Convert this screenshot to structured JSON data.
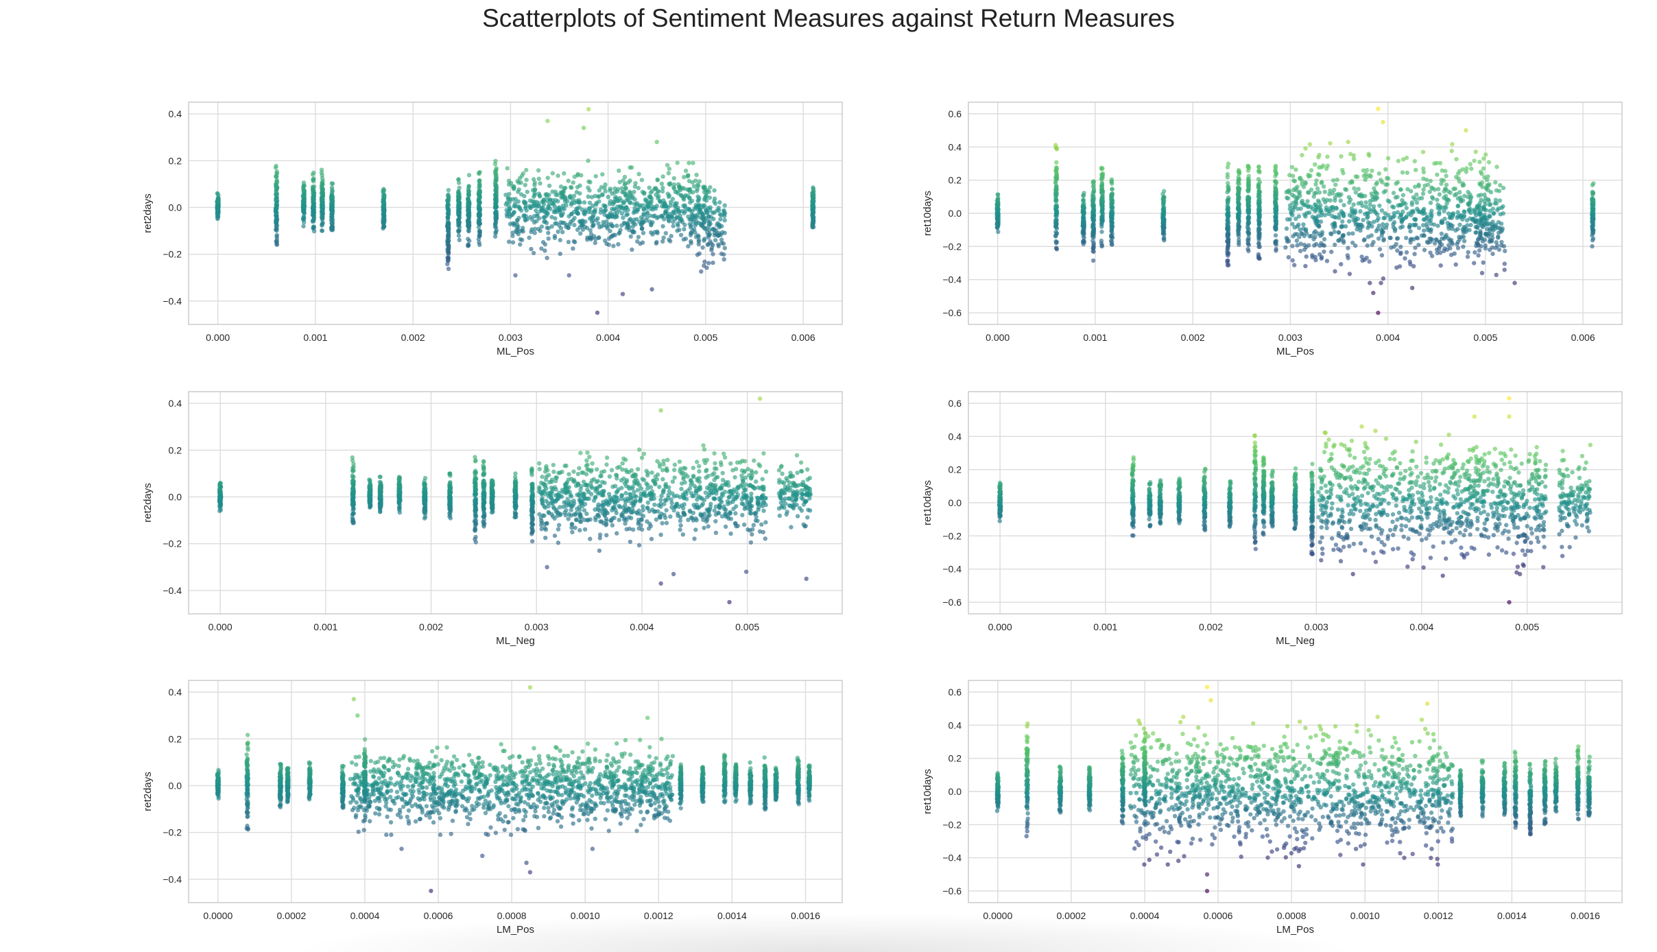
{
  "figure": {
    "suptitle": "Scatterplots of Sentiment Measures against Return Measures",
    "colormap": [
      "#440154",
      "#3b528b",
      "#21918c",
      "#5ec962",
      "#fde725"
    ],
    "grid": true,
    "style": "seaborn-whitegrid"
  },
  "chart_data": [
    {
      "type": "scatter",
      "title": "",
      "xlabel": "ML_Pos",
      "ylabel": "ret2days",
      "xlim": [
        -0.0003,
        0.0064
      ],
      "ylim": [
        -0.5,
        0.45
      ],
      "xticks": [
        0,
        0.001,
        0.002,
        0.003,
        0.004,
        0.005,
        0.006
      ],
      "xtick_labels": [
        "0.000",
        "0.001",
        "0.002",
        "0.003",
        "0.004",
        "0.005",
        "0.006"
      ],
      "yticks": [
        -0.4,
        -0.2,
        0,
        0.2,
        0.4
      ],
      "ytick_labels": [
        "−0.4",
        "−0.2",
        "0.0",
        "0.2",
        "0.4"
      ],
      "clusters": [
        {
          "x": 0.0,
          "lo": -0.06,
          "hi": 0.07
        },
        {
          "x": 0.0006,
          "lo": -0.2,
          "hi": 0.21
        },
        {
          "x": 0.00088,
          "lo": -0.09,
          "hi": 0.12
        },
        {
          "x": 0.00098,
          "lo": -0.12,
          "hi": 0.15
        },
        {
          "x": 0.00107,
          "lo": -0.1,
          "hi": 0.17
        },
        {
          "x": 0.00117,
          "lo": -0.1,
          "hi": 0.11
        },
        {
          "x": 0.0017,
          "lo": -0.09,
          "hi": 0.08
        },
        {
          "x": 0.00236,
          "lo": -0.29,
          "hi": 0.1
        },
        {
          "x": 0.00247,
          "lo": -0.15,
          "hi": 0.13
        },
        {
          "x": 0.00257,
          "lo": -0.17,
          "hi": 0.14
        },
        {
          "x": 0.00268,
          "lo": -0.16,
          "hi": 0.16
        },
        {
          "x": 0.00285,
          "lo": -0.14,
          "hi": 0.2
        }
      ],
      "bands": [
        {
          "x0": 0.00295,
          "x1": 0.00505,
          "lo": -0.22,
          "hi": 0.2,
          "outliers": [
            [
              0.0038,
              0.42
            ],
            [
              0.00338,
              0.37
            ],
            [
              0.00375,
              0.34
            ],
            [
              0.0045,
              0.28
            ],
            [
              0.00389,
              -0.45
            ],
            [
              0.00445,
              -0.35
            ],
            [
              0.00415,
              -0.37
            ],
            [
              0.00305,
              -0.29
            ],
            [
              0.0036,
              -0.29
            ]
          ]
        },
        {
          "x0": 0.0049,
          "x1": 0.0052,
          "lo": -0.3,
          "hi": 0.16,
          "outliers": []
        }
      ],
      "extra_clusters": [
        {
          "x": 0.0061,
          "lo": -0.1,
          "hi": 0.11
        }
      ]
    },
    {
      "type": "scatter",
      "title": "",
      "xlabel": "ML_Pos",
      "ylabel": "ret10days",
      "xlim": [
        -0.0003,
        0.0064
      ],
      "ylim": [
        -0.67,
        0.67
      ],
      "xticks": [
        0,
        0.001,
        0.002,
        0.003,
        0.004,
        0.005,
        0.006
      ],
      "xtick_labels": [
        "0.000",
        "0.001",
        "0.002",
        "0.003",
        "0.004",
        "0.005",
        "0.006"
      ],
      "yticks": [
        -0.6,
        -0.4,
        -0.2,
        0,
        0.2,
        0.4,
        0.6
      ],
      "ytick_labels": [
        "−0.6",
        "−0.4",
        "−0.2",
        "0.0",
        "0.2",
        "0.4",
        "0.6"
      ],
      "clusters": [
        {
          "x": 0.0,
          "lo": -0.12,
          "hi": 0.12
        },
        {
          "x": 0.0006,
          "lo": -0.27,
          "hi": 0.42
        },
        {
          "x": 0.00088,
          "lo": -0.2,
          "hi": 0.15
        },
        {
          "x": 0.00098,
          "lo": -0.3,
          "hi": 0.25
        },
        {
          "x": 0.00107,
          "lo": -0.2,
          "hi": 0.28
        },
        {
          "x": 0.00117,
          "lo": -0.2,
          "hi": 0.22
        },
        {
          "x": 0.0017,
          "lo": -0.2,
          "hi": 0.14
        },
        {
          "x": 0.00236,
          "lo": -0.33,
          "hi": 0.3
        },
        {
          "x": 0.00247,
          "lo": -0.24,
          "hi": 0.3
        },
        {
          "x": 0.00257,
          "lo": -0.23,
          "hi": 0.3
        },
        {
          "x": 0.00268,
          "lo": -0.28,
          "hi": 0.3
        },
        {
          "x": 0.00285,
          "lo": -0.25,
          "hi": 0.32
        }
      ],
      "bands": [
        {
          "x0": 0.00295,
          "x1": 0.00505,
          "lo": -0.42,
          "hi": 0.43,
          "outliers": [
            [
              0.0039,
              0.63
            ],
            [
              0.00395,
              0.55
            ],
            [
              0.0048,
              0.5
            ],
            [
              0.00385,
              -0.48
            ],
            [
              0.0039,
              -0.6
            ],
            [
              0.00425,
              -0.45
            ],
            [
              0.0053,
              -0.42
            ]
          ]
        },
        {
          "x0": 0.0049,
          "x1": 0.0052,
          "lo": -0.42,
          "hi": 0.28,
          "outliers": []
        }
      ],
      "extra_clusters": [
        {
          "x": 0.0061,
          "lo": -0.2,
          "hi": 0.18
        }
      ]
    },
    {
      "type": "scatter",
      "title": "",
      "xlabel": "ML_Neg",
      "ylabel": "ret2days",
      "xlim": [
        -0.0003,
        0.0059
      ],
      "ylim": [
        -0.5,
        0.45
      ],
      "xticks": [
        0,
        0.001,
        0.002,
        0.003,
        0.004,
        0.005
      ],
      "xtick_labels": [
        "0.000",
        "0.001",
        "0.002",
        "0.003",
        "0.004",
        "0.005"
      ],
      "yticks": [
        -0.4,
        -0.2,
        0,
        0.2,
        0.4
      ],
      "ytick_labels": [
        "−0.4",
        "−0.2",
        "0.0",
        "0.2",
        "0.4"
      ],
      "clusters": [
        {
          "x": 0.0,
          "lo": -0.06,
          "hi": 0.06
        },
        {
          "x": 0.00126,
          "lo": -0.14,
          "hi": 0.18
        },
        {
          "x": 0.00142,
          "lo": -0.07,
          "hi": 0.08
        },
        {
          "x": 0.00152,
          "lo": -0.07,
          "hi": 0.09
        },
        {
          "x": 0.0017,
          "lo": -0.07,
          "hi": 0.09
        },
        {
          "x": 0.00194,
          "lo": -0.1,
          "hi": 0.09
        },
        {
          "x": 0.00218,
          "lo": -0.1,
          "hi": 0.1
        },
        {
          "x": 0.00242,
          "lo": -0.2,
          "hi": 0.17
        },
        {
          "x": 0.0025,
          "lo": -0.14,
          "hi": 0.16
        },
        {
          "x": 0.00258,
          "lo": -0.07,
          "hi": 0.08
        },
        {
          "x": 0.0028,
          "lo": -0.1,
          "hi": 0.1
        },
        {
          "x": 0.00296,
          "lo": -0.2,
          "hi": 0.14
        }
      ],
      "bands": [
        {
          "x0": 0.00302,
          "x1": 0.00518,
          "lo": -0.23,
          "hi": 0.22,
          "outliers": [
            [
              0.00512,
              0.42
            ],
            [
              0.00418,
              0.37
            ],
            [
              0.00483,
              -0.45
            ],
            [
              0.00418,
              -0.37
            ],
            [
              0.0043,
              -0.33
            ],
            [
              0.00499,
              -0.32
            ],
            [
              0.0031,
              -0.3
            ]
          ]
        },
        {
          "x0": 0.0053,
          "x1": 0.0056,
          "lo": -0.14,
          "hi": 0.2,
          "outliers": [
            [
              0.00556,
              -0.35
            ]
          ]
        }
      ],
      "extra_clusters": []
    },
    {
      "type": "scatter",
      "title": "",
      "xlabel": "ML_Neg",
      "ylabel": "ret10days",
      "xlim": [
        -0.0003,
        0.0059
      ],
      "ylim": [
        -0.67,
        0.67
      ],
      "xticks": [
        0,
        0.001,
        0.002,
        0.003,
        0.004,
        0.005
      ],
      "xtick_labels": [
        "0.000",
        "0.001",
        "0.002",
        "0.003",
        "0.004",
        "0.005"
      ],
      "yticks": [
        -0.6,
        -0.4,
        -0.2,
        0,
        0.2,
        0.4,
        0.6
      ],
      "ytick_labels": [
        "−0.6",
        "−0.4",
        "−0.2",
        "0.0",
        "0.2",
        "0.4",
        "0.6"
      ],
      "clusters": [
        {
          "x": 0.0,
          "lo": -0.12,
          "hi": 0.12
        },
        {
          "x": 0.00126,
          "lo": -0.2,
          "hi": 0.28
        },
        {
          "x": 0.00142,
          "lo": -0.15,
          "hi": 0.13
        },
        {
          "x": 0.00152,
          "lo": -0.15,
          "hi": 0.15
        },
        {
          "x": 0.0017,
          "lo": -0.14,
          "hi": 0.15
        },
        {
          "x": 0.00194,
          "lo": -0.17,
          "hi": 0.21
        },
        {
          "x": 0.00218,
          "lo": -0.15,
          "hi": 0.13
        },
        {
          "x": 0.00242,
          "lo": -0.3,
          "hi": 0.42
        },
        {
          "x": 0.0025,
          "lo": -0.2,
          "hi": 0.28
        },
        {
          "x": 0.00258,
          "lo": -0.15,
          "hi": 0.2
        },
        {
          "x": 0.0028,
          "lo": -0.2,
          "hi": 0.22
        },
        {
          "x": 0.00296,
          "lo": -0.33,
          "hi": 0.28
        }
      ],
      "bands": [
        {
          "x0": 0.00302,
          "x1": 0.00518,
          "lo": -0.43,
          "hi": 0.46,
          "outliers": [
            [
              0.00483,
              0.63
            ],
            [
              0.00483,
              0.52
            ],
            [
              0.0045,
              0.52
            ],
            [
              0.00483,
              -0.6
            ],
            [
              0.0042,
              -0.44
            ],
            [
              0.0049,
              -0.42
            ]
          ]
        },
        {
          "x0": 0.0053,
          "x1": 0.0056,
          "lo": -0.35,
          "hi": 0.38,
          "outliers": []
        }
      ],
      "extra_clusters": []
    },
    {
      "type": "scatter",
      "title": "",
      "xlabel": "LM_Pos",
      "ylabel": "ret2days",
      "xlim": [
        -8e-05,
        0.0017
      ],
      "ylim": [
        -0.5,
        0.45
      ],
      "xticks": [
        0,
        0.0002,
        0.0004,
        0.0006,
        0.0008,
        0.001,
        0.0012,
        0.0014,
        0.0016
      ],
      "xtick_labels": [
        "0.0000",
        "0.0002",
        "0.0004",
        "0.0006",
        "0.0008",
        "0.0010",
        "0.0012",
        "0.0014",
        "0.0016"
      ],
      "yticks": [
        -0.4,
        -0.2,
        0,
        0.2,
        0.4
      ],
      "ytick_labels": [
        "−0.4",
        "−0.2",
        "0.0",
        "0.2",
        "0.4"
      ],
      "clusters": [
        {
          "x": 0.0,
          "lo": -0.06,
          "hi": 0.07
        },
        {
          "x": 8e-05,
          "lo": -0.2,
          "hi": 0.22
        },
        {
          "x": 0.00017,
          "lo": -0.1,
          "hi": 0.1
        },
        {
          "x": 0.00019,
          "lo": -0.08,
          "hi": 0.09
        },
        {
          "x": 0.00025,
          "lo": -0.06,
          "hi": 0.1
        },
        {
          "x": 0.00034,
          "lo": -0.1,
          "hi": 0.1
        },
        {
          "x": 0.0004,
          "lo": -0.15,
          "hi": 0.2
        },
        {
          "x": 0.00126,
          "lo": -0.1,
          "hi": 0.1
        },
        {
          "x": 0.00132,
          "lo": -0.07,
          "hi": 0.08
        },
        {
          "x": 0.00138,
          "lo": -0.1,
          "hi": 0.15
        },
        {
          "x": 0.00141,
          "lo": -0.07,
          "hi": 0.1
        },
        {
          "x": 0.00145,
          "lo": -0.08,
          "hi": 0.1
        },
        {
          "x": 0.00149,
          "lo": -0.12,
          "hi": 0.13
        },
        {
          "x": 0.00152,
          "lo": -0.07,
          "hi": 0.08
        },
        {
          "x": 0.00158,
          "lo": -0.08,
          "hi": 0.12
        },
        {
          "x": 0.00161,
          "lo": -0.07,
          "hi": 0.1
        }
      ],
      "bands": [
        {
          "x0": 0.00036,
          "x1": 0.00124,
          "lo": -0.21,
          "hi": 0.2,
          "outliers": [
            [
              0.00085,
              0.42
            ],
            [
              0.00037,
              0.37
            ],
            [
              0.00038,
              0.3
            ],
            [
              0.00058,
              -0.45
            ],
            [
              0.00085,
              -0.37
            ],
            [
              0.00084,
              -0.33
            ],
            [
              0.0005,
              -0.27
            ],
            [
              0.00102,
              -0.27
            ],
            [
              0.00117,
              0.29
            ],
            [
              0.00072,
              -0.3
            ]
          ]
        }
      ],
      "extra_clusters": []
    },
    {
      "type": "scatter",
      "title": "",
      "xlabel": "LM_Pos",
      "ylabel": "ret10days",
      "xlim": [
        -8e-05,
        0.0017
      ],
      "ylim": [
        -0.67,
        0.67
      ],
      "xticks": [
        0,
        0.0002,
        0.0004,
        0.0006,
        0.0008,
        0.001,
        0.0012,
        0.0014,
        0.0016
      ],
      "xtick_labels": [
        "0.0000",
        "0.0002",
        "0.0004",
        "0.0006",
        "0.0008",
        "0.0010",
        "0.0012",
        "0.0014",
        "0.0016"
      ],
      "yticks": [
        -0.6,
        -0.4,
        -0.2,
        0,
        0.2,
        0.4,
        0.6
      ],
      "ytick_labels": [
        "−0.6",
        "−0.4",
        "−0.2",
        "0.0",
        "0.2",
        "0.4",
        "0.6"
      ],
      "clusters": [
        {
          "x": 0.0,
          "lo": -0.12,
          "hi": 0.12
        },
        {
          "x": 8e-05,
          "lo": -0.27,
          "hi": 0.42
        },
        {
          "x": 0.00017,
          "lo": -0.13,
          "hi": 0.15
        },
        {
          "x": 0.00025,
          "lo": -0.15,
          "hi": 0.18
        },
        {
          "x": 0.00034,
          "lo": -0.2,
          "hi": 0.25
        },
        {
          "x": 0.0004,
          "lo": -0.2,
          "hi": 0.38
        },
        {
          "x": 0.00126,
          "lo": -0.15,
          "hi": 0.15
        },
        {
          "x": 0.00132,
          "lo": -0.15,
          "hi": 0.2
        },
        {
          "x": 0.00138,
          "lo": -0.15,
          "hi": 0.18
        },
        {
          "x": 0.00141,
          "lo": -0.22,
          "hi": 0.25
        },
        {
          "x": 0.00145,
          "lo": -0.3,
          "hi": 0.2
        },
        {
          "x": 0.00149,
          "lo": -0.2,
          "hi": 0.2
        },
        {
          "x": 0.00152,
          "lo": -0.15,
          "hi": 0.2
        },
        {
          "x": 0.00158,
          "lo": -0.2,
          "hi": 0.28
        },
        {
          "x": 0.00161,
          "lo": -0.15,
          "hi": 0.22
        }
      ],
      "bands": [
        {
          "x0": 0.00036,
          "x1": 0.00124,
          "lo": -0.44,
          "hi": 0.45,
          "outliers": [
            [
              0.00057,
              0.63
            ],
            [
              0.00058,
              0.55
            ],
            [
              0.00117,
              0.53
            ],
            [
              0.00057,
              -0.6
            ],
            [
              0.00057,
              -0.5
            ],
            [
              0.00082,
              -0.45
            ]
          ]
        }
      ],
      "extra_clusters": []
    }
  ]
}
